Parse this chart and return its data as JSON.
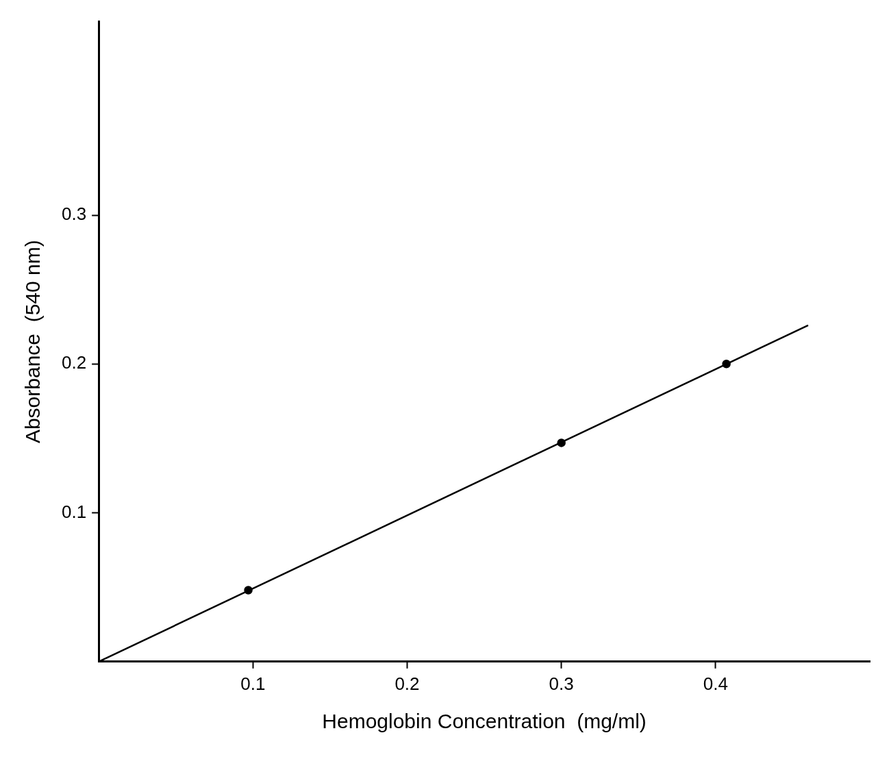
{
  "chart_data": {
    "type": "scatter",
    "xlabel": "Hemoglobin Concentration  (mg/ml)",
    "ylabel": "Absorbance  (540 nm)",
    "xlim": [
      0,
      0.5
    ],
    "ylim": [
      0,
      0.43
    ],
    "xticks": [
      0.1,
      0.2,
      0.3,
      0.4
    ],
    "yticks": [
      0.1,
      0.2,
      0.3
    ],
    "grid": false,
    "legend": false,
    "series": [
      {
        "type": "scatter",
        "color": "#000000",
        "marker": "circle",
        "x": [
          0.097,
          0.3,
          0.407
        ],
        "values": [
          0.048,
          0.147,
          0.2
        ]
      },
      {
        "type": "line",
        "color": "#000000",
        "marker": "none",
        "line_style": "solid",
        "x": [
          0,
          0.46
        ],
        "values": [
          0,
          0.226
        ]
      }
    ]
  }
}
